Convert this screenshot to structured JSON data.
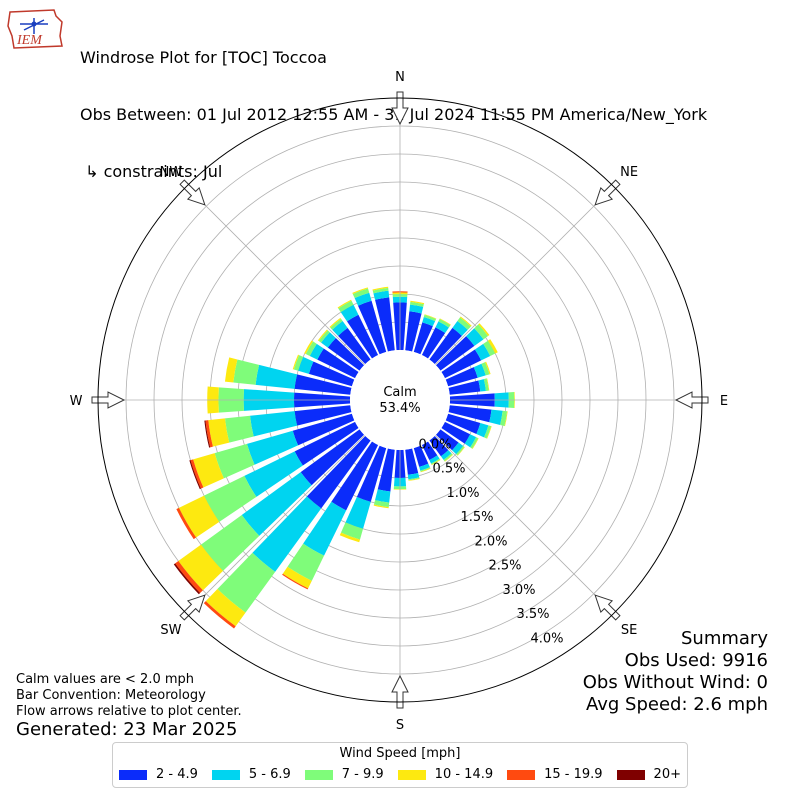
{
  "header": {
    "logo_text": "IEM",
    "title_lines": [
      "Windrose Plot for [TOC] Toccoa",
      "Obs Between: 01 Jul 2012 12:55 AM - 31 Jul 2024 11:55 PM America/New_York",
      " ↳ constraints: Jul"
    ]
  },
  "calm": {
    "label": "Calm",
    "value": "53.4%"
  },
  "summary": {
    "title": "Summary",
    "obs_used": "Obs Used: 9916",
    "obs_without_wind": "Obs Without Wind: 0",
    "avg_speed": "Avg Speed: 2.6 mph"
  },
  "notes": [
    "Calm values are < 2.0 mph",
    "Bar Convention: Meteorology",
    "Flow arrows relative to plot center."
  ],
  "generated": "Generated: 23 Mar 2025",
  "legend": {
    "title": "Wind Speed [mph]",
    "items": [
      {
        "label": "2 - 4.9",
        "color": "#0b2cfa"
      },
      {
        "label": "5 - 6.9",
        "color": "#00d4f0"
      },
      {
        "label": "7 - 9.9",
        "color": "#7ffc7a"
      },
      {
        "label": "10 - 14.9",
        "color": "#fde910"
      },
      {
        "label": "15 - 19.9",
        "color": "#ff4a10"
      },
      {
        "label": "20+",
        "color": "#7f0000"
      }
    ]
  },
  "chart_data": {
    "type": "windrose",
    "direction_labels": [
      "N",
      "NE",
      "E",
      "SE",
      "S",
      "SW",
      "W",
      "NW"
    ],
    "radial_ticks": [
      "0.0%",
      "0.5%",
      "1.0%",
      "1.5%",
      "2.0%",
      "2.5%",
      "3.0%",
      "3.5%",
      "4.0%"
    ],
    "radial_range": [
      0,
      4.5
    ],
    "calm_percent": 53.4,
    "bins": [
      "2 - 4.9",
      "5 - 6.9",
      "7 - 9.9",
      "10 - 14.9",
      "15 - 19.9",
      "20+"
    ],
    "sectors": [
      {
        "direction": 0,
        "values": [
          0.85,
          0.1,
          0.05,
          0.03,
          0.02,
          0.0
        ]
      },
      {
        "direction": 10,
        "values": [
          0.7,
          0.12,
          0.05,
          0.02,
          0.0,
          0.0
        ]
      },
      {
        "direction": 20,
        "values": [
          0.55,
          0.1,
          0.04,
          0.01,
          0.0,
          0.0
        ]
      },
      {
        "direction": 30,
        "values": [
          0.55,
          0.12,
          0.05,
          0.01,
          0.0,
          0.0
        ]
      },
      {
        "direction": 40,
        "values": [
          0.7,
          0.15,
          0.08,
          0.02,
          0.0,
          0.0
        ]
      },
      {
        "direction": 50,
        "values": [
          0.75,
          0.2,
          0.1,
          0.03,
          0.0,
          0.0
        ]
      },
      {
        "direction": 60,
        "values": [
          0.72,
          0.18,
          0.1,
          0.05,
          0.0,
          0.0
        ]
      },
      {
        "direction": 70,
        "values": [
          0.55,
          0.15,
          0.07,
          0.02,
          0.0,
          0.0
        ]
      },
      {
        "direction": 80,
        "values": [
          0.55,
          0.1,
          0.05,
          0.01,
          0.0,
          0.0
        ]
      },
      {
        "direction": 90,
        "values": [
          0.8,
          0.25,
          0.1,
          0.01,
          0.0,
          0.0
        ]
      },
      {
        "direction": 100,
        "values": [
          0.75,
          0.2,
          0.08,
          0.01,
          0.0,
          0.0
        ]
      },
      {
        "direction": 110,
        "values": [
          0.6,
          0.15,
          0.05,
          0.01,
          0.0,
          0.0
        ]
      },
      {
        "direction": 120,
        "values": [
          0.5,
          0.12,
          0.04,
          0.01,
          0.0,
          0.0
        ]
      },
      {
        "direction": 130,
        "values": [
          0.4,
          0.1,
          0.03,
          0.01,
          0.0,
          0.0
        ]
      },
      {
        "direction": 140,
        "values": [
          0.35,
          0.08,
          0.03,
          0.01,
          0.0,
          0.0
        ]
      },
      {
        "direction": 150,
        "values": [
          0.3,
          0.07,
          0.02,
          0.01,
          0.0,
          0.0
        ]
      },
      {
        "direction": 160,
        "values": [
          0.35,
          0.07,
          0.02,
          0.01,
          0.0,
          0.0
        ]
      },
      {
        "direction": 170,
        "values": [
          0.45,
          0.08,
          0.02,
          0.01,
          0.0,
          0.0
        ]
      },
      {
        "direction": 180,
        "values": [
          0.5,
          0.15,
          0.05,
          0.01,
          0.0,
          0.0
        ]
      },
      {
        "direction": 190,
        "values": [
          0.75,
          0.2,
          0.08,
          0.02,
          0.0,
          0.0
        ]
      },
      {
        "direction": 200,
        "values": [
          1.0,
          0.5,
          0.2,
          0.05,
          0.0,
          0.0
        ]
      },
      {
        "direction": 210,
        "values": [
          1.3,
          0.9,
          0.5,
          0.15,
          0.02,
          0.0
        ]
      },
      {
        "direction": 220,
        "values": [
          1.5,
          1.4,
          0.9,
          0.3,
          0.05,
          0.0
        ]
      },
      {
        "direction": 230,
        "values": [
          1.3,
          1.3,
          0.9,
          0.5,
          0.07,
          0.03
        ]
      },
      {
        "direction": 240,
        "values": [
          1.2,
          1.0,
          0.8,
          0.5,
          0.05,
          0.0
        ]
      },
      {
        "direction": 250,
        "values": [
          1.1,
          0.85,
          0.6,
          0.4,
          0.05,
          0.02
        ]
      },
      {
        "direction": 260,
        "values": [
          1.0,
          0.8,
          0.45,
          0.3,
          0.05,
          0.02
        ]
      },
      {
        "direction": 270,
        "values": [
          1.0,
          0.9,
          0.45,
          0.2,
          0.0,
          0.0
        ]
      },
      {
        "direction": 280,
        "values": [
          1.0,
          0.7,
          0.4,
          0.15,
          0.0,
          0.0
        ]
      },
      {
        "direction": 290,
        "values": [
          0.8,
          0.2,
          0.08,
          0.02,
          0.0,
          0.0
        ]
      },
      {
        "direction": 300,
        "values": [
          0.75,
          0.15,
          0.08,
          0.03,
          0.0,
          0.0
        ]
      },
      {
        "direction": 310,
        "values": [
          0.7,
          0.15,
          0.05,
          0.02,
          0.0,
          0.0
        ]
      },
      {
        "direction": 320,
        "values": [
          0.7,
          0.15,
          0.05,
          0.02,
          0.0,
          0.0
        ]
      },
      {
        "direction": 330,
        "values": [
          0.8,
          0.2,
          0.08,
          0.02,
          0.0,
          0.0
        ]
      },
      {
        "direction": 340,
        "values": [
          0.95,
          0.15,
          0.08,
          0.02,
          0.0,
          0.0
        ]
      },
      {
        "direction": 350,
        "values": [
          0.95,
          0.12,
          0.05,
          0.02,
          0.0,
          0.0
        ]
      }
    ]
  }
}
